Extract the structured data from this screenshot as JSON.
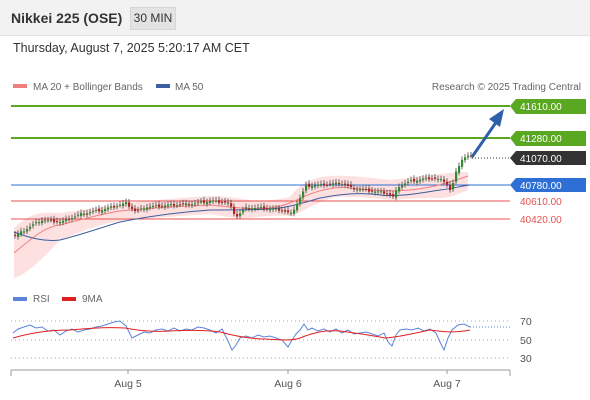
{
  "header": {
    "title": "Nikkei 225 (OSE)",
    "timeframe": "30 MIN"
  },
  "datetime": "Thursday, August 7, 2025 5:20:17 AM CET",
  "legend": {
    "ma20_bb": "MA 20 + Bollinger Bands",
    "ma50": "MA 50",
    "copyright": "Research © 2025 Trading Central"
  },
  "levels": {
    "r2": "41610.00",
    "r1": "41280.00",
    "last": "41070.00",
    "pivot": "40780.00",
    "s1": "40610.00",
    "s2": "40420.00"
  },
  "rsi_legend": {
    "rsi": "RSI",
    "ma9": "9MA"
  },
  "rsi_axis": [
    "70",
    "50",
    "30"
  ],
  "x_axis": [
    "Aug 5",
    "Aug 6",
    "Aug 7"
  ],
  "colors": {
    "resistance": "#5aa821",
    "pivot": "#2e6fd6",
    "support": "#e85050",
    "last": "#333333",
    "arrow": "#2e5fa8",
    "bb_fill": "#fddada",
    "ma20": "#f08080",
    "ma50": "#3b5fa0",
    "rsi": "#5b84d6",
    "rsi_ma": "#e02020"
  }
}
